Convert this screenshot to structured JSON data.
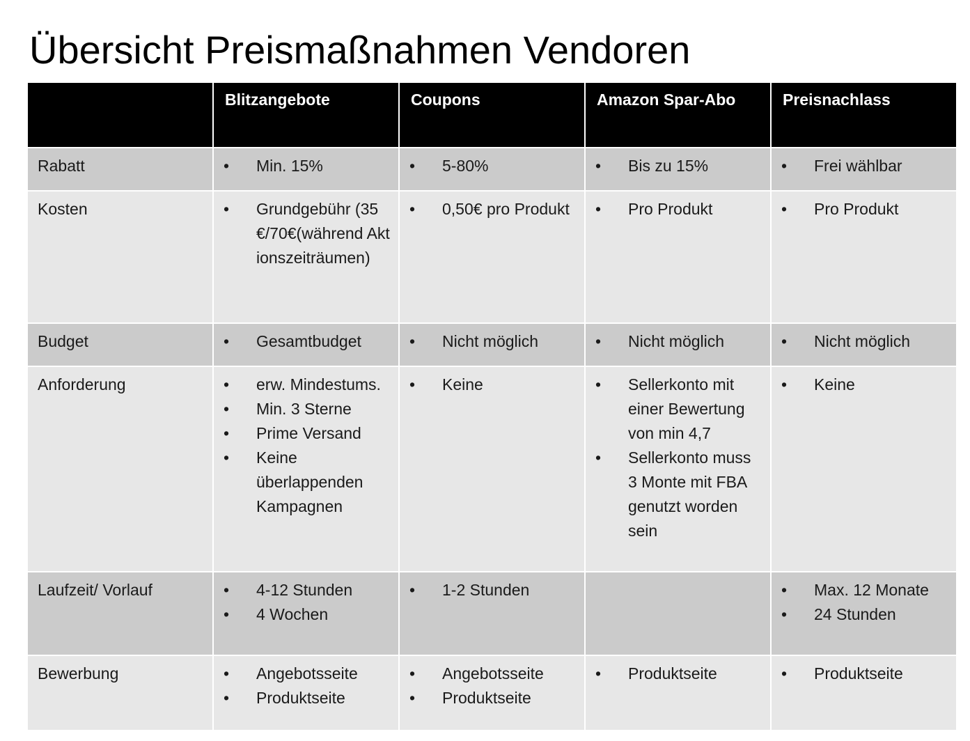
{
  "title": "Übersicht Preismaßnahmen Vendoren",
  "table": {
    "columns": [
      "",
      "Blitzangebote",
      "Coupons",
      "Amazon Spar-Abo",
      "Preisnachlass"
    ],
    "rows": [
      {
        "label": "Rabatt",
        "cells": [
          [
            "Min. 15%"
          ],
          [
            "5-80%"
          ],
          [
            "Bis zu 15%"
          ],
          [
            "Frei wählbar"
          ]
        ]
      },
      {
        "label": "Kosten",
        "cells": [
          [
            "Grundgebühr (35€/70€(während Aktionszeiträumen)"
          ],
          [
            "0,50€ pro Produkt"
          ],
          [
            "Pro Produkt"
          ],
          [
            "Pro Produkt"
          ]
        ]
      },
      {
        "label": "Budget",
        "cells": [
          [
            "Gesamtbudget"
          ],
          [
            "Nicht möglich"
          ],
          [
            "Nicht möglich"
          ],
          [
            "Nicht möglich"
          ]
        ]
      },
      {
        "label": "Anforderung",
        "cells": [
          [
            "erw. Mindestums.",
            "Min. 3 Sterne",
            "Prime Versand",
            "Keine überlappenden Kampagnen"
          ],
          [
            "Keine"
          ],
          [
            "Sellerkonto mit einer Bewertung von min 4,7",
            "Sellerkonto muss 3 Monte mit FBA genutzt worden sein"
          ],
          [
            "Keine"
          ]
        ]
      },
      {
        "label": "Laufzeit/ Vorlauf",
        "cells": [
          [
            "4-12 Stunden",
            "4 Wochen"
          ],
          [
            "1-2 Stunden"
          ],
          [],
          [
            "Max. 12 Monate",
            "24 Stunden"
          ]
        ]
      },
      {
        "label": "Bewerbung",
        "cells": [
          [
            "Angebotsseite",
            "Produktseite"
          ],
          [
            "Angebotsseite",
            "Produktseite"
          ],
          [
            "Produktseite"
          ],
          [
            "Produktseite"
          ]
        ]
      }
    ]
  }
}
